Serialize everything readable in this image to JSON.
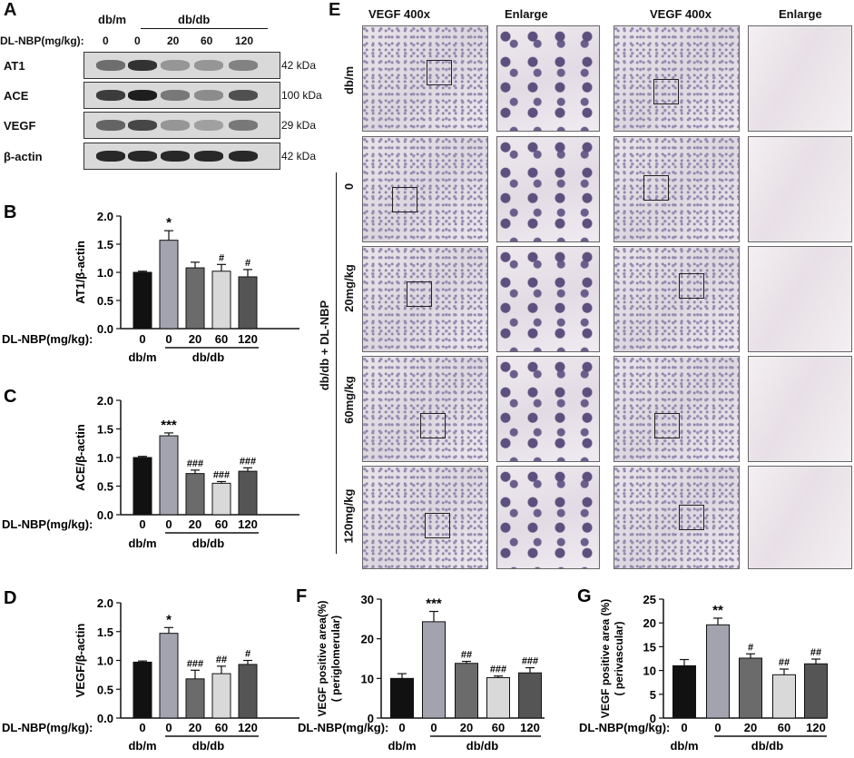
{
  "panel_labels": {
    "A": "A",
    "B": "B",
    "C": "C",
    "D": "D",
    "E": "E",
    "F": "F",
    "G": "G"
  },
  "blot": {
    "group_dbm": "db/m",
    "group_dbdb": "db/db",
    "dose_label": "DL-NBP(mg/kg):",
    "doses": [
      "0",
      "0",
      "20",
      "60",
      "120"
    ],
    "rows": [
      {
        "name": "AT1",
        "kda": "42 kDa",
        "intensity": [
          0.55,
          0.85,
          0.35,
          0.35,
          0.45
        ]
      },
      {
        "name": "ACE",
        "kda": "100 kDa",
        "intensity": [
          0.8,
          0.95,
          0.5,
          0.4,
          0.7
        ]
      },
      {
        "name": "VEGF",
        "kda": "29 kDa",
        "intensity": [
          0.6,
          0.75,
          0.35,
          0.3,
          0.5
        ]
      },
      {
        "name": "β-actin",
        "kda": "42 kDa",
        "intensity": [
          0.9,
          0.9,
          0.9,
          0.9,
          0.9
        ]
      }
    ]
  },
  "histology": {
    "headers": [
      "VEGF 400x",
      "Enlarge",
      "VEGF 400x",
      "Enlarge"
    ],
    "row_dbm": "db/m",
    "row_group": "db/db + DL-NBP",
    "rows": [
      "0",
      "20mg/kg",
      "60mg/kg",
      "120mg/kg"
    ]
  },
  "axis_common": {
    "dose_label": "DL-NBP(mg/kg):",
    "group_dbm": "db/m",
    "group_dbdb": "db/db"
  },
  "colors": [
    "#111111",
    "#a3a3b0",
    "#6b6b6b",
    "#d9d9d9",
    "#555555"
  ],
  "chart_data": [
    {
      "id": "B",
      "type": "bar",
      "ylabel": "AT1/β-actin",
      "ylim": [
        0,
        2.0
      ],
      "yticks": [
        "0.0",
        "0.5",
        "1.0",
        "1.5",
        "2.0"
      ],
      "categories": [
        "0",
        "0",
        "20",
        "60",
        "120"
      ],
      "values": [
        1.0,
        1.57,
        1.08,
        1.02,
        0.92
      ],
      "errors": [
        0.02,
        0.17,
        0.1,
        0.12,
        0.13
      ],
      "annotations": [
        "",
        "*",
        "",
        "#",
        "#"
      ]
    },
    {
      "id": "C",
      "type": "bar",
      "ylabel": "ACE/β-actin",
      "ylim": [
        0,
        2.0
      ],
      "yticks": [
        "0.0",
        "0.5",
        "1.0",
        "1.5",
        "2.0"
      ],
      "categories": [
        "0",
        "0",
        "20",
        "60",
        "120"
      ],
      "values": [
        1.0,
        1.38,
        0.72,
        0.55,
        0.76
      ],
      "errors": [
        0.02,
        0.05,
        0.06,
        0.03,
        0.06
      ],
      "annotations": [
        "",
        "***",
        "###",
        "###",
        "###"
      ]
    },
    {
      "id": "D",
      "type": "bar",
      "ylabel": "VEGF/β-actin",
      "ylim": [
        0,
        2.0
      ],
      "yticks": [
        "0.0",
        "0.5",
        "1.0",
        "1.5",
        "2.0"
      ],
      "categories": [
        "0",
        "0",
        "20",
        "60",
        "120"
      ],
      "values": [
        0.97,
        1.47,
        0.68,
        0.77,
        0.93
      ],
      "errors": [
        0.02,
        0.1,
        0.15,
        0.13,
        0.07
      ],
      "annotations": [
        "",
        "*",
        "###",
        "##",
        "#"
      ]
    },
    {
      "id": "F",
      "type": "bar",
      "ylabel": "VEGF positive area(%)",
      "ylabel2": "( periglomerular)",
      "ylim": [
        0,
        30
      ],
      "yticks": [
        "0",
        "10",
        "20",
        "30"
      ],
      "categories": [
        "0",
        "0",
        "20",
        "60",
        "120"
      ],
      "values": [
        10.0,
        24.3,
        13.8,
        10.2,
        11.4
      ],
      "errors": [
        1.2,
        2.6,
        0.5,
        0.4,
        1.3
      ],
      "annotations": [
        "",
        "***",
        "##",
        "###",
        "###"
      ]
    },
    {
      "id": "G",
      "type": "bar",
      "ylabel": "VEGF positive area (%)",
      "ylabel2": "( perivascular)",
      "ylim": [
        0,
        25
      ],
      "yticks": [
        "0",
        "5",
        "10",
        "15",
        "20",
        "25"
      ],
      "categories": [
        "0",
        "0",
        "20",
        "60",
        "120"
      ],
      "values": [
        11.0,
        19.6,
        12.6,
        9.1,
        11.4
      ],
      "errors": [
        1.3,
        1.4,
        0.9,
        1.2,
        1.0
      ],
      "annotations": [
        "",
        "**",
        "#",
        "##",
        "##"
      ]
    }
  ]
}
